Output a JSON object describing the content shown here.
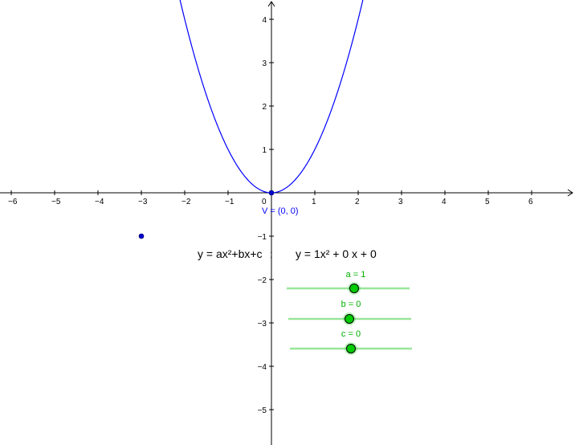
{
  "colors": {
    "curve": "#0000ff",
    "point": "#0000cc",
    "axis": "#000000",
    "slider_track": "#99e699",
    "slider_label": "#00b000",
    "slider_knob": "#00cc00"
  },
  "equations": {
    "general": "y = ax²+bx+c",
    "separator": ":",
    "specific": "y = 1x² + 0 x + 0"
  },
  "vertex_label": "V = (0, 0)",
  "sliders": [
    {
      "name": "a",
      "label": "a = 1",
      "value": 1
    },
    {
      "name": "b",
      "label": "b = 0",
      "value": 0
    },
    {
      "name": "c",
      "label": "c = 0",
      "value": 0
    }
  ],
  "chart_data": {
    "type": "line",
    "title": "",
    "xlabel": "",
    "ylabel": "",
    "xlim": [
      -6.2,
      6.9
    ],
    "ylim": [
      -5.8,
      4.4
    ],
    "grid": false,
    "x_ticks": [
      -6,
      -5,
      -4,
      -3,
      -2,
      -1,
      0,
      1,
      2,
      3,
      4,
      5,
      6
    ],
    "y_ticks": [
      -5,
      -4,
      -3,
      -2,
      -1,
      1,
      2,
      3,
      4
    ],
    "tick_labels_x": [
      "−6",
      "−5",
      "−4",
      "−3",
      "−2",
      "−1",
      "0",
      "1",
      "2",
      "3",
      "4",
      "5",
      "6"
    ],
    "tick_labels_y": [
      "−5",
      "−4",
      "−3",
      "−2",
      "−1",
      "1",
      "2",
      "3",
      "4"
    ],
    "function": {
      "a": 1,
      "b": 0,
      "c": 0
    },
    "points": [
      {
        "name": "V",
        "x": 0,
        "y": 0
      },
      {
        "name": "",
        "x": -3,
        "y": -1
      }
    ]
  }
}
